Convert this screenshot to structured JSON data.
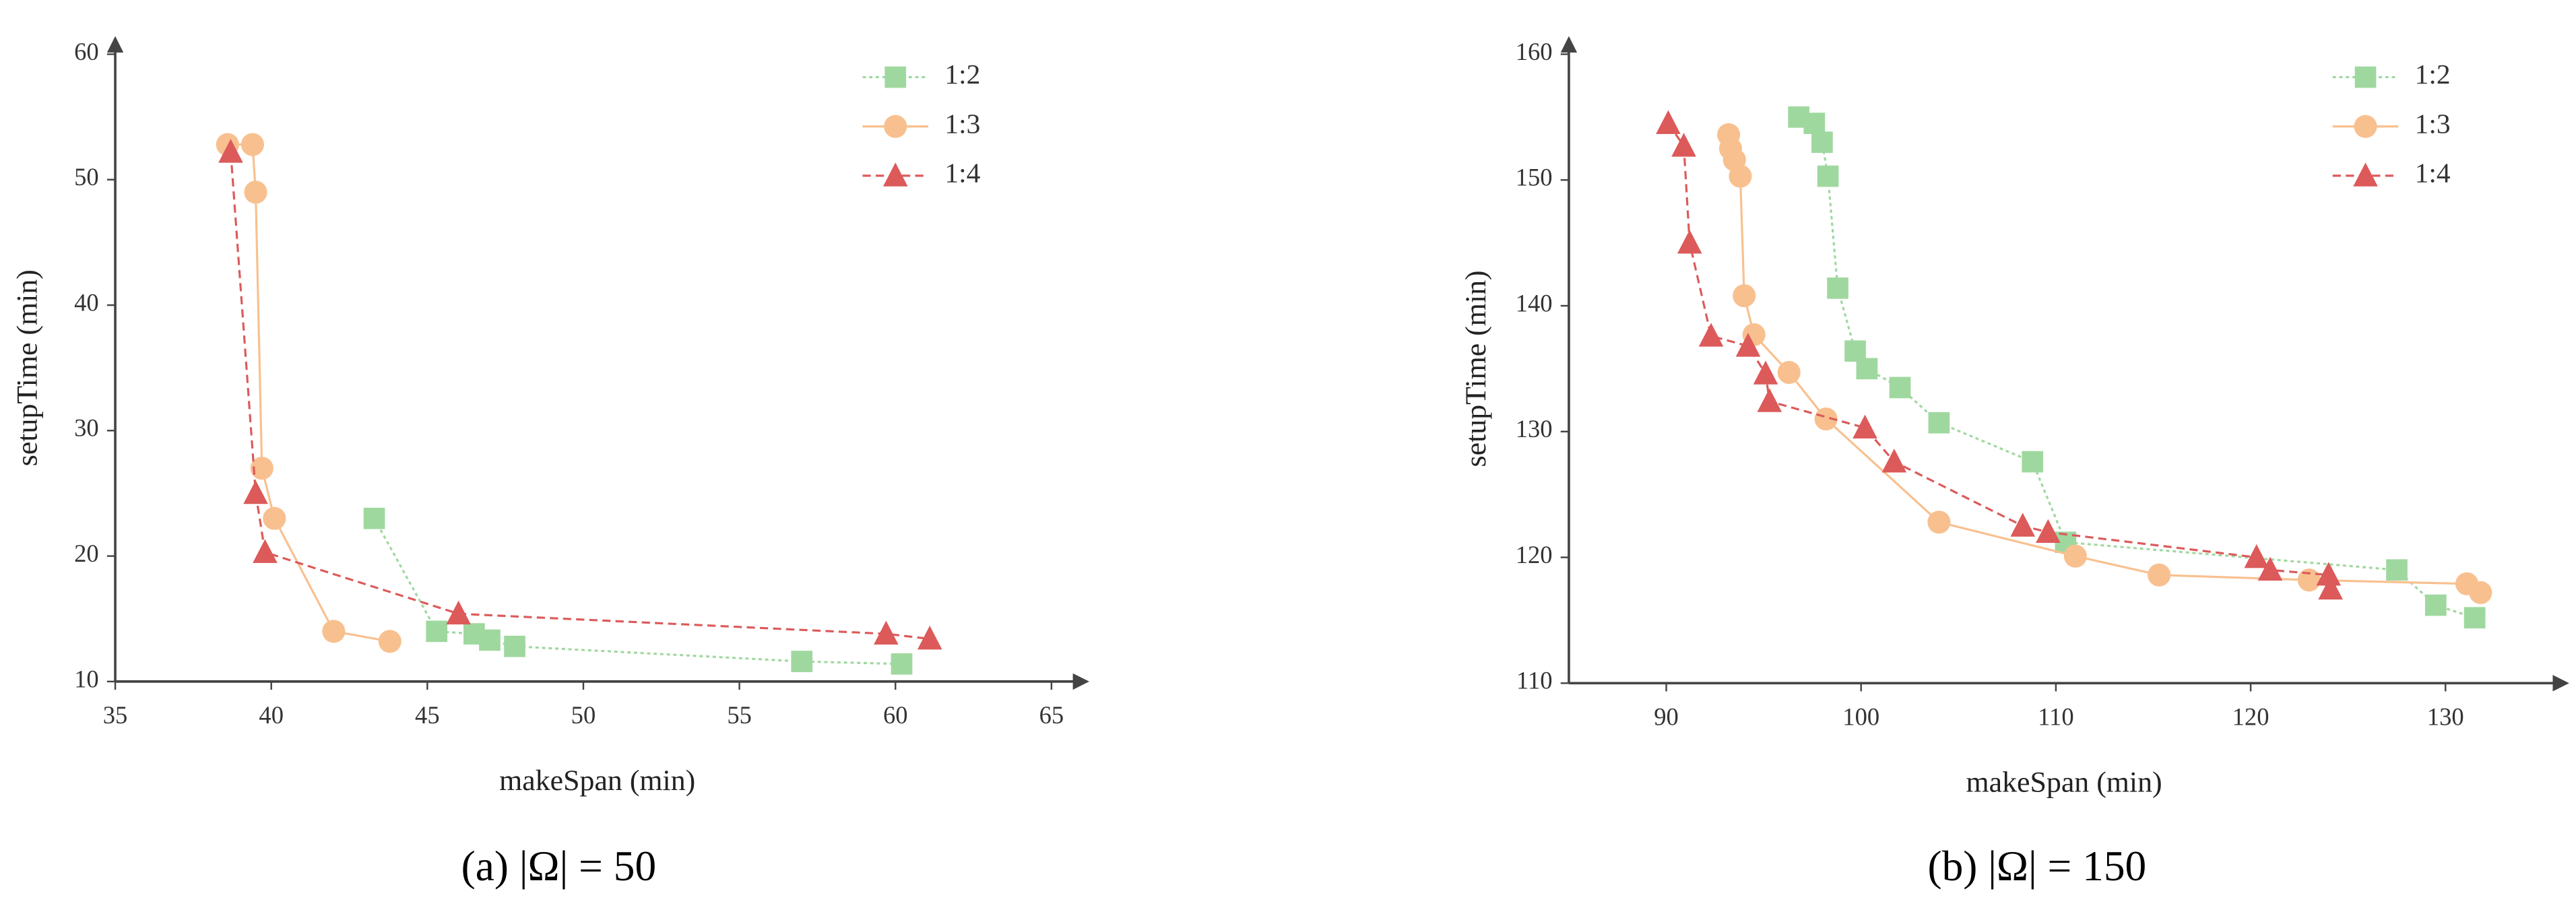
{
  "chart_data": [
    {
      "type": "line",
      "caption": "(a)  |Ω| = 50",
      "x_label": "makeSpan (min)",
      "y_label": "setupTime (min)",
      "xlim": [
        35,
        65
      ],
      "ylim": [
        10,
        60
      ],
      "xticks": [
        35,
        40,
        45,
        50,
        55,
        60,
        65
      ],
      "yticks": [
        10,
        20,
        30,
        40,
        50,
        60
      ],
      "grid": false,
      "legend": "upper right",
      "series": [
        {
          "name": "1:2",
          "color": "#9fd89f",
          "marker": "square",
          "dash": "2 2",
          "x": [
            43.3,
            45.3,
            46.5,
            47,
            47.8,
            57,
            60.2
          ],
          "values": [
            23,
            14,
            13.8,
            13.3,
            12.8,
            11.6,
            11.4
          ]
        },
        {
          "name": "1:3",
          "color": "#f8c08f",
          "marker": "circle",
          "dash": "none",
          "x": [
            38.6,
            39.4,
            39.5,
            39.7,
            40.1,
            42,
            43.8
          ],
          "values": [
            52.8,
            52.8,
            49,
            27,
            23,
            14,
            13.2
          ]
        },
        {
          "name": "1:4",
          "color": "#dc5a5a",
          "marker": "triangle",
          "dash": "5 3",
          "x": [
            38.7,
            39.5,
            39.8,
            46,
            59.7,
            61.1
          ],
          "values": [
            52.2,
            25,
            20.3,
            15.4,
            13.8,
            13.4
          ]
        }
      ]
    },
    {
      "type": "line",
      "caption": "(b)  |Ω| = 150",
      "x_label": "makeSpan (min)",
      "y_label": "setupTime (min)",
      "xlim": [
        85,
        135
      ],
      "ylim": [
        110,
        160
      ],
      "xticks": [
        90,
        100,
        110,
        120,
        130
      ],
      "yticks": [
        110,
        120,
        130,
        140,
        150,
        160
      ],
      "grid": false,
      "legend": "upper right",
      "series": [
        {
          "name": "1:2",
          "color": "#9fd89f",
          "marker": "square",
          "dash": "2 2",
          "x": [
            96.8,
            97.6,
            98,
            98.3,
            98.8,
            99.7,
            100.3,
            102,
            104,
            108.8,
            110.5,
            127.5,
            129.5,
            131.5
          ],
          "values": [
            155,
            154.5,
            153,
            150.3,
            141.4,
            136.4,
            135,
            133.5,
            130.7,
            127.6,
            121.2,
            119,
            116.2,
            115.2
          ]
        },
        {
          "name": "1:3",
          "color": "#f8c08f",
          "marker": "circle",
          "dash": "none",
          "x": [
            93.2,
            93.3,
            93.5,
            93.8,
            94,
            94.5,
            96.3,
            98.2,
            104,
            111,
            115.3,
            123,
            131.1,
            131.8
          ],
          "values": [
            153.6,
            152.5,
            151.6,
            150.3,
            140.8,
            137.7,
            134.7,
            131,
            122.8,
            120.1,
            118.6,
            118.2,
            117.9,
            117.2
          ]
        },
        {
          "name": "1:4",
          "color": "#dc5a5a",
          "marker": "triangle",
          "dash": "5 3",
          "x": [
            90.1,
            90.9,
            91.2,
            92.3,
            94.2,
            95.1,
            95.3,
            100.2,
            101.7,
            108.3,
            109.6,
            120.3,
            121,
            124,
            124.1
          ],
          "values": [
            154.5,
            152.7,
            145,
            137.6,
            136.8,
            134.6,
            132.4,
            130.3,
            127.6,
            122.5,
            122,
            120,
            119,
            118.6,
            117.5
          ]
        }
      ]
    }
  ]
}
